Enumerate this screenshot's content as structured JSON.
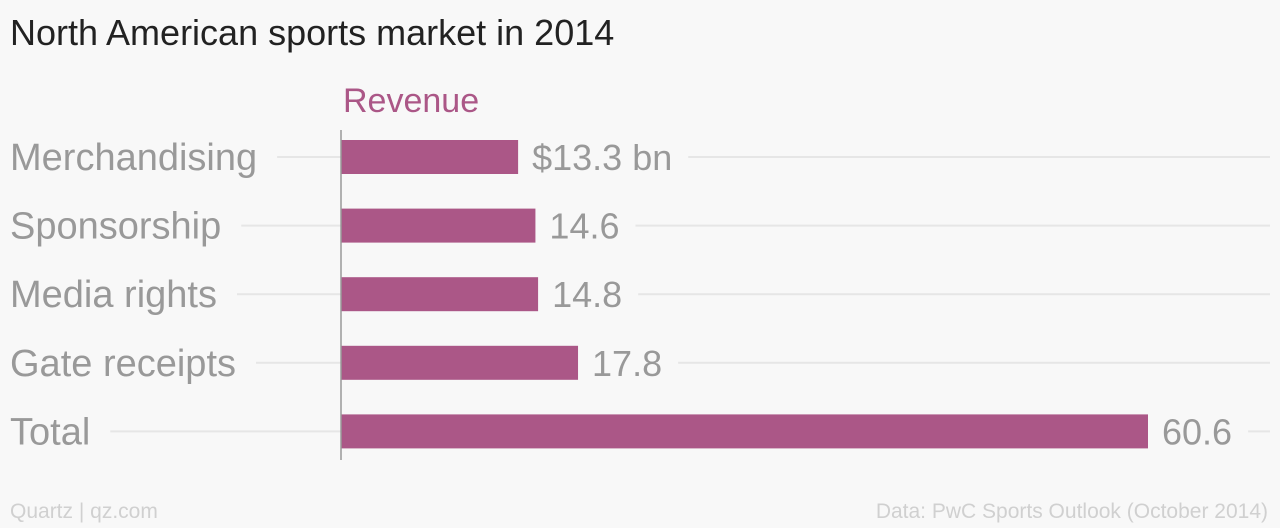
{
  "title": "North American sports market in 2014",
  "footer": {
    "credit": "Quartz | qz.com",
    "source": "Data: PwC Sports Outlook (October 2014)"
  },
  "colors": {
    "bar": "#ab5787",
    "series_label": "#ab5787",
    "category_label": "#999999",
    "value_label": "#999999",
    "gridline": "#e6e6e6",
    "axis": "#999999"
  },
  "chart_data": {
    "type": "bar",
    "orientation": "horizontal",
    "categories": [
      "Merchandising",
      "Sponsorship",
      "Media rights",
      "Gate receipts",
      "Total"
    ],
    "series": [
      {
        "name": "Revenue",
        "values": [
          13.3,
          14.6,
          14.8,
          17.8,
          60.6
        ],
        "value_labels": [
          "$13.3 bn",
          "14.6",
          "14.8",
          "17.8",
          "60.6"
        ]
      }
    ],
    "xlim": [
      0,
      60.6
    ],
    "grid": true
  }
}
